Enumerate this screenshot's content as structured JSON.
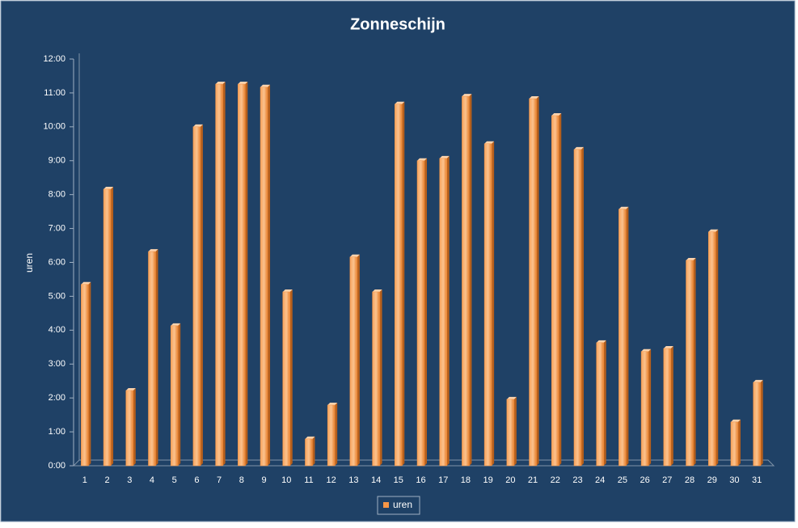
{
  "chart_data": {
    "type": "bar",
    "title": "Zonneschijn",
    "y_label": "uren",
    "categories": [
      "1",
      "2",
      "3",
      "4",
      "5",
      "6",
      "7",
      "8",
      "9",
      "10",
      "11",
      "12",
      "13",
      "14",
      "15",
      "16",
      "17",
      "18",
      "19",
      "20",
      "21",
      "22",
      "23",
      "24",
      "25",
      "26",
      "27",
      "28",
      "29",
      "30",
      "31"
    ],
    "series": [
      {
        "name": "uren",
        "color": "#f79646",
        "values": [
          5.35,
          8.16,
          2.22,
          6.32,
          4.13,
          10.0,
          11.26,
          11.26,
          11.17,
          5.13,
          0.79,
          1.79,
          6.16,
          5.13,
          10.67,
          9.0,
          9.07,
          10.9,
          9.5,
          1.96,
          10.83,
          10.33,
          9.33,
          3.63,
          7.57,
          3.37,
          3.46,
          6.06,
          6.9,
          1.29,
          2.46
        ]
      }
    ],
    "ylim": [
      0,
      12
    ],
    "yticks": [
      {
        "value": 0,
        "label": "0:00"
      },
      {
        "value": 1,
        "label": "1:00"
      },
      {
        "value": 2,
        "label": "2:00"
      },
      {
        "value": 3,
        "label": "3:00"
      },
      {
        "value": 4,
        "label": "4:00"
      },
      {
        "value": 5,
        "label": "5:00"
      },
      {
        "value": 6,
        "label": "6:00"
      },
      {
        "value": 7,
        "label": "7:00"
      },
      {
        "value": 8,
        "label": "8:00"
      },
      {
        "value": 9,
        "label": "9:00"
      },
      {
        "value": 10,
        "label": "10:00"
      },
      {
        "value": 11,
        "label": "11:00"
      },
      {
        "value": 12,
        "label": "12:00"
      }
    ],
    "grid": false,
    "legend": "bottom"
  }
}
